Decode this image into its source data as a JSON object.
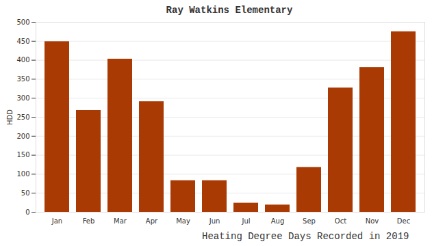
{
  "chart_data": {
    "type": "bar",
    "title": "Ray Watkins Elementary",
    "x_label": "Heating Degree Days Recorded in 2019",
    "y_label": "HDD",
    "categories": [
      "Jan",
      "Feb",
      "Mar",
      "Apr",
      "May",
      "Jun",
      "Jul",
      "Aug",
      "Sep",
      "Oct",
      "Nov",
      "Dec"
    ],
    "values": [
      449,
      268,
      403,
      291,
      83,
      83,
      24,
      19,
      118,
      327,
      381,
      475
    ],
    "color": "#aa3a04",
    "ylim": [
      0,
      500
    ],
    "yticks": [
      0,
      50,
      100,
      150,
      200,
      250,
      300,
      350,
      400,
      450,
      500
    ],
    "grid": true
  }
}
